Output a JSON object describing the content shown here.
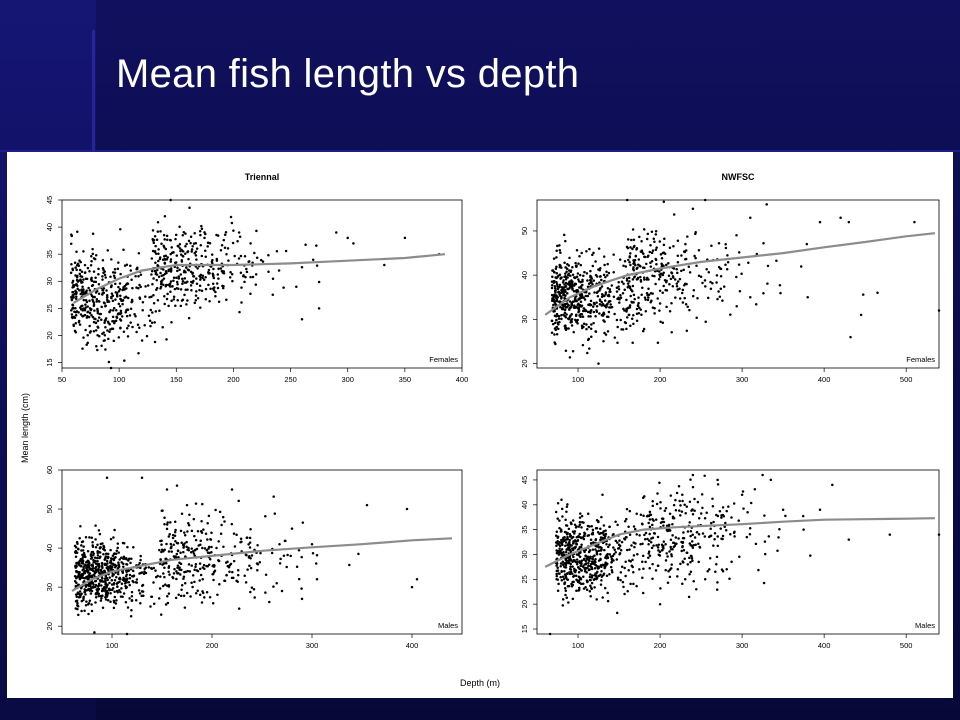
{
  "slide": {
    "title": "Mean fish length vs depth"
  },
  "figure": {
    "ylabel": "Mean length (cm)",
    "xlabel": "Depth (m)"
  },
  "chart_data": [
    {
      "type": "scatter",
      "title": "Triennal",
      "annotation": "Females",
      "xlim": [
        50,
        400
      ],
      "ylim": [
        14,
        45
      ],
      "xticks": [
        50,
        100,
        150,
        200,
        250,
        300,
        350,
        400
      ],
      "yticks": [
        15,
        20,
        25,
        30,
        35,
        40,
        45
      ],
      "smooth": {
        "x": [
          60,
          80,
          100,
          120,
          150,
          200,
          250,
          300,
          350,
          385
        ],
        "y": [
          26,
          28.5,
          30.5,
          32,
          33,
          33,
          33.3,
          33.8,
          34.3,
          35
        ]
      },
      "cloud": [
        {
          "x": 50,
          "y": 27,
          "sx": 40,
          "sy": 4.5,
          "n": 440
        },
        {
          "x": 120,
          "y": 33,
          "sx": 50,
          "sy": 3.5,
          "n": 340
        }
      ],
      "points": [
        [
          145,
          45
        ],
        [
          140,
          42
        ],
        [
          205,
          39
        ],
        [
          215,
          37
        ],
        [
          290,
          39
        ],
        [
          300,
          38
        ],
        [
          305,
          37
        ],
        [
          350,
          38
        ],
        [
          332,
          33
        ],
        [
          260,
          23
        ],
        [
          275,
          25
        ],
        [
          255,
          29
        ],
        [
          93,
          14
        ],
        [
          80,
          18
        ],
        [
          240,
          32
        ],
        [
          380,
          35
        ]
      ]
    },
    {
      "type": "scatter",
      "title": "NWFSC",
      "annotation": "Females",
      "xlim": [
        50,
        540
      ],
      "ylim": [
        19,
        57
      ],
      "xticks": [
        100,
        200,
        300,
        400,
        500
      ],
      "yticks": [
        20,
        30,
        40,
        50
      ],
      "smooth": {
        "x": [
          60,
          90,
          120,
          160,
          200,
          250,
          300,
          350,
          400,
          450,
          500,
          535
        ],
        "y": [
          31,
          35,
          37.5,
          40,
          41.5,
          43,
          44,
          45,
          46.3,
          47.5,
          48.8,
          49.5
        ]
      },
      "cloud": [
        {
          "x": 60,
          "y": 35,
          "sx": 45,
          "sy": 4.5,
          "n": 560
        },
        {
          "x": 150,
          "y": 40,
          "sx": 70,
          "sy": 5,
          "n": 300
        }
      ],
      "points": [
        [
          255,
          57
        ],
        [
          330,
          56
        ],
        [
          160,
          57
        ],
        [
          310,
          53
        ],
        [
          420,
          53
        ],
        [
          430,
          52
        ],
        [
          510,
          52
        ],
        [
          395,
          52
        ],
        [
          465,
          36
        ],
        [
          540,
          32
        ],
        [
          310,
          35
        ],
        [
          380,
          35
        ],
        [
          240,
          55
        ],
        [
          125,
          20
        ],
        [
          280,
          47
        ],
        [
          445,
          31
        ]
      ]
    },
    {
      "type": "scatter",
      "title": "",
      "annotation": "Males",
      "xlim": [
        50,
        450
      ],
      "ylim": [
        18,
        60
      ],
      "xticks": [
        100,
        200,
        300,
        400
      ],
      "yticks": [
        20,
        30,
        40,
        50,
        60
      ],
      "smooth": {
        "x": [
          60,
          80,
          100,
          130,
          160,
          200,
          250,
          300,
          350,
          400,
          440
        ],
        "y": [
          29,
          32,
          34,
          35.5,
          37,
          38,
          39.3,
          40.2,
          41,
          42,
          42.5
        ]
      },
      "cloud": [
        {
          "x": 55,
          "y": 33,
          "sx": 40,
          "sy": 4.5,
          "n": 620
        },
        {
          "x": 140,
          "y": 38,
          "sx": 60,
          "sy": 5.5,
          "n": 300
        }
      ],
      "points": [
        [
          95,
          58
        ],
        [
          130,
          58
        ],
        [
          165,
          56
        ],
        [
          155,
          55
        ],
        [
          175,
          51
        ],
        [
          355,
          51
        ],
        [
          395,
          50
        ],
        [
          280,
          45
        ],
        [
          300,
          41
        ],
        [
          270,
          29
        ],
        [
          290,
          27
        ],
        [
          305,
          32
        ],
        [
          405,
          32
        ],
        [
          400,
          30
        ],
        [
          115,
          18
        ],
        [
          220,
          55
        ]
      ]
    },
    {
      "type": "scatter",
      "title": "",
      "annotation": "Males",
      "xlim": [
        50,
        540
      ],
      "ylim": [
        14,
        47
      ],
      "xticks": [
        100,
        200,
        300,
        400,
        500
      ],
      "yticks": [
        15,
        20,
        25,
        30,
        35,
        40,
        45
      ],
      "smooth": {
        "x": [
          60,
          90,
          120,
          150,
          180,
          220,
          260,
          300,
          350,
          400,
          450,
          500,
          535
        ],
        "y": [
          27.5,
          30,
          32,
          34,
          35,
          35.5,
          35.8,
          36.1,
          36.6,
          37,
          37.1,
          37.2,
          37.3
        ]
      },
      "cloud": [
        {
          "x": 65,
          "y": 30,
          "sx": 45,
          "sy": 4,
          "n": 620
        },
        {
          "x": 170,
          "y": 34,
          "sx": 70,
          "sy": 4.5,
          "n": 280
        }
      ],
      "points": [
        [
          240,
          46
        ],
        [
          325,
          46
        ],
        [
          335,
          45
        ],
        [
          300,
          42
        ],
        [
          410,
          44
        ],
        [
          540,
          34
        ],
        [
          375,
          35
        ],
        [
          430,
          33
        ],
        [
          200,
          20
        ],
        [
          255,
          25
        ],
        [
          260,
          27
        ],
        [
          66,
          14
        ],
        [
          350,
          39
        ],
        [
          395,
          39
        ],
        [
          230,
          40
        ],
        [
          480,
          34
        ]
      ]
    }
  ]
}
